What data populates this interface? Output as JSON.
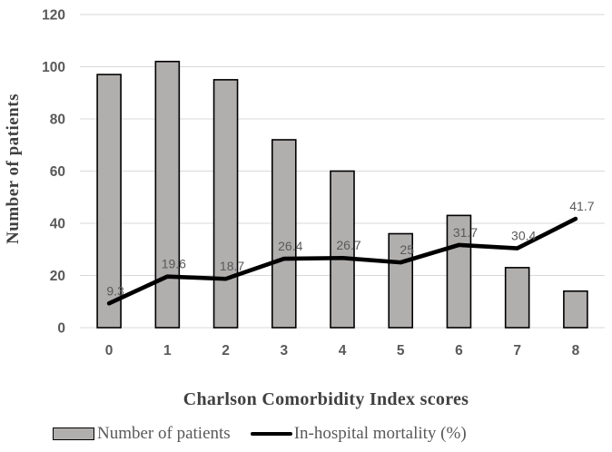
{
  "chart_data": {
    "type": "bar",
    "subtype": "bar-line-combo",
    "categories": [
      "0",
      "1",
      "2",
      "3",
      "4",
      "5",
      "6",
      "7",
      "8"
    ],
    "series": [
      {
        "name": "Number of patients",
        "type": "bar",
        "values": [
          97,
          102,
          95,
          72,
          60,
          36,
          43,
          23,
          14
        ]
      },
      {
        "name": "In-hospital mortality (%)",
        "type": "line",
        "values": [
          9.3,
          19.6,
          18.7,
          26.4,
          26.7,
          25,
          31.7,
          30.4,
          41.7
        ],
        "data_labels": [
          "9.3",
          "19.6",
          "18.7",
          "26.4",
          "26.7",
          "25",
          "31.7",
          "30.4",
          "41.7"
        ]
      }
    ],
    "title": "",
    "xlabel": "Charlson Comorbidity Index scores",
    "ylabel": "Number of patients",
    "ylim": [
      0,
      120
    ],
    "ytick_interval": 20,
    "yticks": [
      "0",
      "20",
      "40",
      "60",
      "80",
      "100",
      "120"
    ],
    "grid": "horizontal",
    "legend_position": "bottom"
  },
  "legend": {
    "items": [
      {
        "label": "Number of patients",
        "swatch": "gray-bar"
      },
      {
        "label": "In-hospital mortality (%)",
        "swatch": "black-line"
      }
    ]
  },
  "colors": {
    "background": "#ffffff",
    "bar_fill": "#b1aeae",
    "bar_border": "#000000",
    "line": "#000000",
    "gridline": "#d9d9d9",
    "axis_line": "#d9d9d9",
    "tick_label": "#595959",
    "data_label": "#595959",
    "axis_title": "#404040",
    "legend_text": "#595959"
  }
}
